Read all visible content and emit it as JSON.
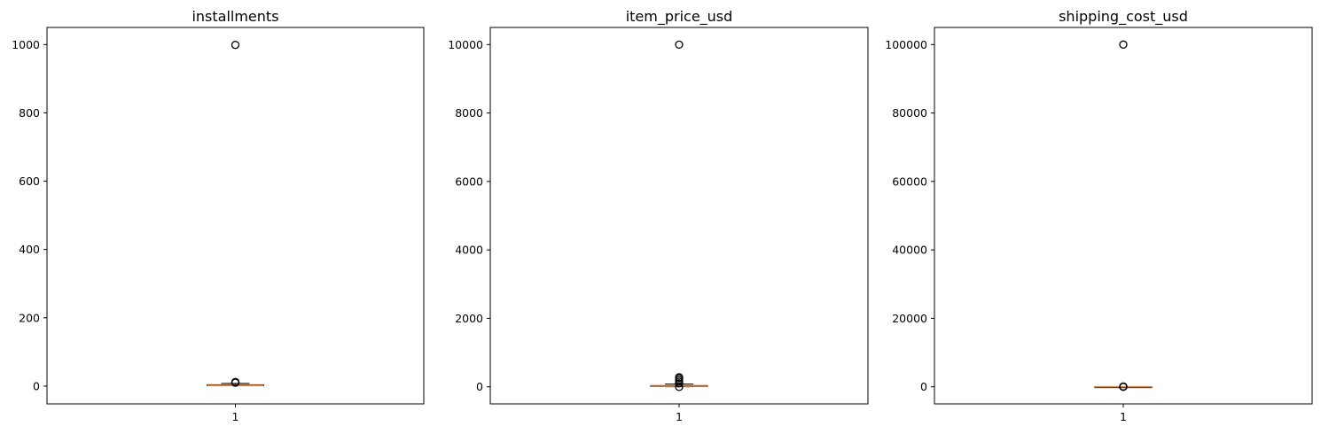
{
  "chart_data": [
    {
      "type": "box",
      "title": "installments",
      "x_tick_labels": [
        "1"
      ],
      "y_ticks": [
        0,
        200,
        400,
        600,
        800,
        1000
      ],
      "y_tick_labels": [
        "0",
        "200",
        "400",
        "600",
        "800",
        "1000"
      ],
      "ylim": [
        -52,
        1050
      ],
      "box": {
        "q1": 1,
        "median": 2,
        "q3": 4,
        "whisker_low": 1,
        "whisker_high": 8
      },
      "outliers": [
        10,
        11,
        12,
        999
      ]
    },
    {
      "type": "box",
      "title": "item_price_usd",
      "x_tick_labels": [
        "1"
      ],
      "y_ticks": [
        0,
        2000,
        4000,
        6000,
        8000,
        10000
      ],
      "y_tick_labels": [
        "0",
        "2000",
        "4000",
        "6000",
        "8000",
        "10000"
      ],
      "ylim": [
        -500,
        10500
      ],
      "box": {
        "q1": 5,
        "median": 15,
        "q3": 35,
        "whisker_low": 0,
        "whisker_high": 80
      },
      "outliers": [
        -5,
        100,
        150,
        200,
        250,
        280,
        9999
      ]
    },
    {
      "type": "box",
      "title": "shipping_cost_usd",
      "x_tick_labels": [
        "1"
      ],
      "y_ticks": [
        0,
        20000,
        40000,
        60000,
        80000,
        100000
      ],
      "y_tick_labels": [
        "0",
        "20000",
        "40000",
        "60000",
        "80000",
        "100000"
      ],
      "ylim": [
        -5000,
        105000
      ],
      "box": {
        "q1": 2,
        "median": 5,
        "q3": 10,
        "whisker_low": 0,
        "whisker_high": 22
      },
      "outliers": [
        -10,
        30,
        45,
        60,
        99999
      ]
    }
  ],
  "colors": {
    "median": "#e8863a",
    "box": "#000000",
    "outlier_edge": "#000000"
  }
}
